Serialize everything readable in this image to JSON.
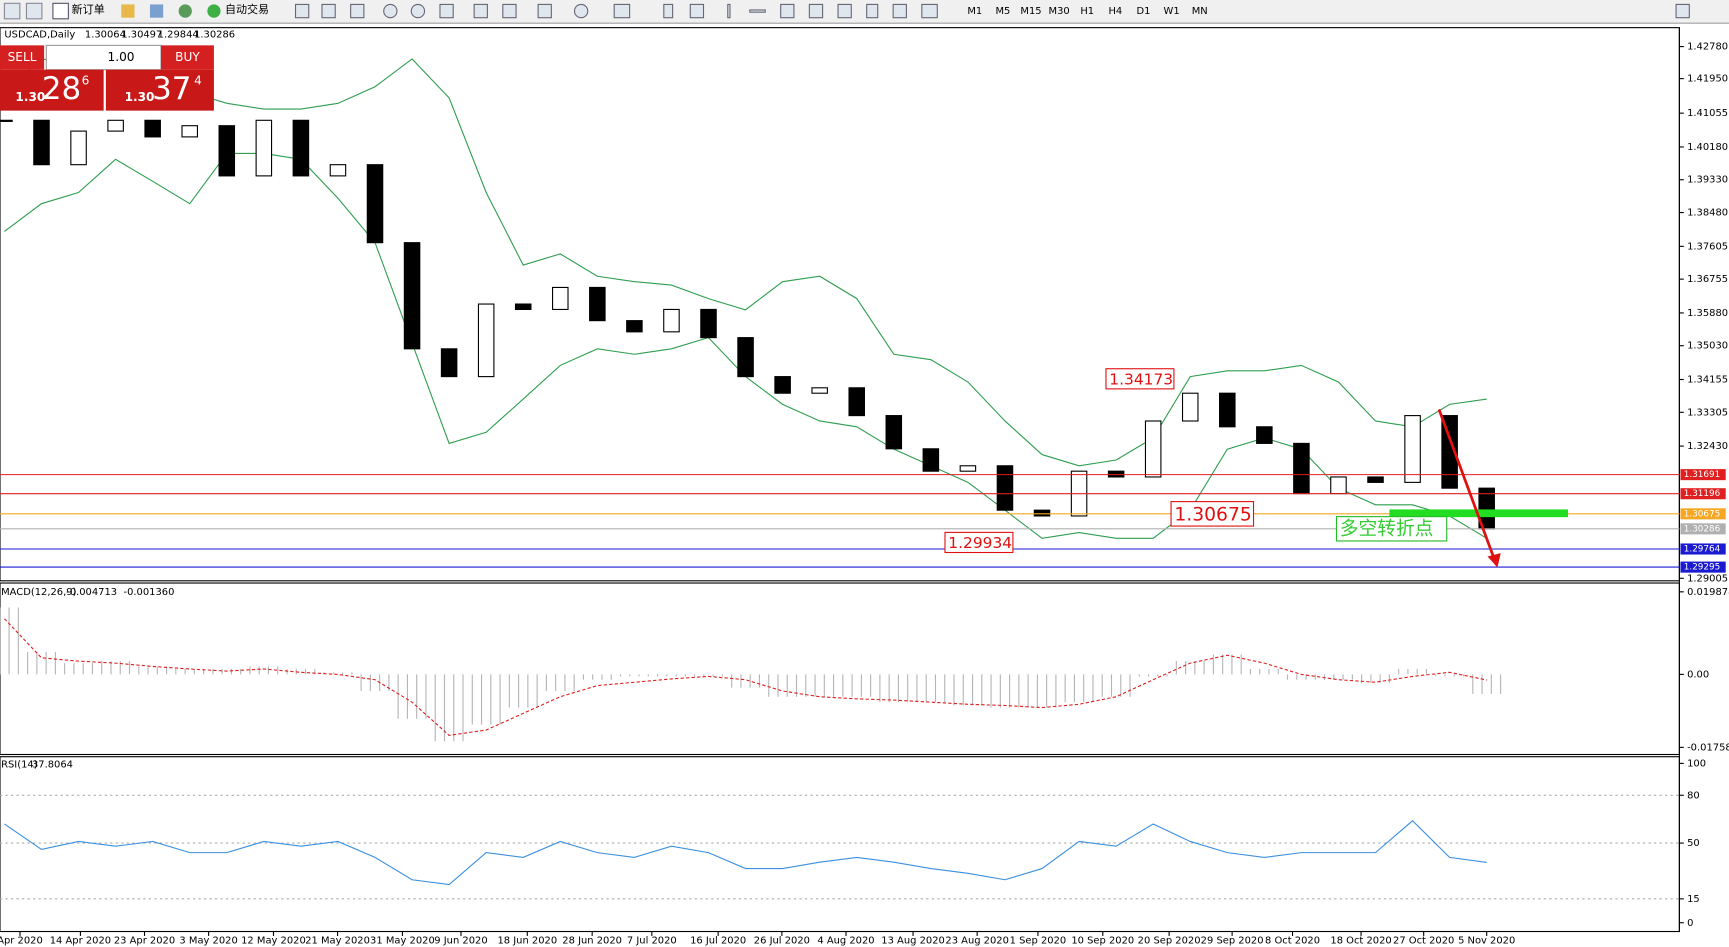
{
  "toolbar": {
    "new_order": "新订单",
    "auto_trading": "自动交易",
    "timeframes": [
      "M1",
      "M5",
      "M15",
      "M30",
      "H1",
      "H4",
      "D1",
      "W1",
      "MN"
    ]
  },
  "trade_panel": {
    "sell": "SELL",
    "lots": "1.00",
    "buy": "BUY",
    "sell_price": {
      "big": "1.30",
      "pips": "28",
      "point": "6"
    },
    "buy_price": {
      "big": "1.30",
      "pips": "37",
      "point": "4"
    }
  },
  "chart_data": [
    {
      "type": "candlestick",
      "title": "USDCAD,Daily",
      "ohlc": [
        1.30064,
        1.30497,
        1.29844,
        1.30286
      ],
      "close": [
        1.4087,
        1.3972,
        1.4059,
        1.4087,
        1.4044,
        1.4073,
        1.3943,
        1.4087,
        1.3943,
        1.3972,
        1.377,
        1.3495,
        1.3423,
        1.3611,
        1.3597,
        1.3654,
        1.3568,
        1.3539,
        1.3597,
        1.3524,
        1.3423,
        1.338,
        1.3394,
        1.3322,
        1.3236,
        1.3178,
        1.3192,
        1.3077,
        1.3062,
        1.3178,
        1.3163,
        1.3308,
        1.338,
        1.3293,
        1.325,
        1.312,
        1.3163,
        1.3149,
        1.3322,
        1.3134,
        1.30286
      ],
      "upper": [
        1.416,
        1.4246,
        1.4232,
        1.4238,
        1.4203,
        1.416,
        1.4131,
        1.4116,
        1.4116,
        1.4131,
        1.4174,
        1.4246,
        1.4145,
        1.39,
        1.3712,
        1.3741,
        1.3683,
        1.3669,
        1.366,
        1.3625,
        1.3596,
        1.3669,
        1.3683,
        1.3625,
        1.3481,
        1.3467,
        1.3409,
        1.3308,
        1.3221,
        1.3192,
        1.3207,
        1.3264,
        1.3423,
        1.3438,
        1.3438,
        1.3452,
        1.3409,
        1.3308,
        1.3293,
        1.3351,
        1.3365
      ],
      "lower": [
        1.3799,
        1.3871,
        1.39,
        1.3986,
        1.3929,
        1.3871,
        1.4001,
        1.4001,
        1.3986,
        1.3885,
        1.377,
        1.351,
        1.325,
        1.3279,
        1.3365,
        1.3452,
        1.3495,
        1.3481,
        1.3495,
        1.3524,
        1.3423,
        1.3351,
        1.3308,
        1.3293,
        1.3235,
        1.3192,
        1.3149,
        1.3077,
        1.3004,
        1.3019,
        1.3004,
        1.3004,
        1.3077,
        1.3235,
        1.3264,
        1.3235,
        1.3134,
        1.3091,
        1.3091,
        1.3062,
        1.3004
      ],
      "band_color": "#2e9e4e",
      "up_color": "#ffffff",
      "down_color": "#000000",
      "ylim": [
        1.2894,
        1.4327
      ],
      "xlim": [
        -0.12,
        45.2
      ],
      "yticks": [
        {
          "value": 1.4278,
          "label": "1.42780"
        },
        {
          "value": 1.4195,
          "label": "1.41950"
        },
        1.41055,
        {
          "value": 1.4018,
          "label": "1.40180"
        },
        {
          "value": 1.3933,
          "label": "1.39330"
        },
        {
          "value": 1.3848,
          "label": "1.38480"
        },
        1.37605,
        1.36755,
        {
          "value": 1.3588,
          "label": "1.35880"
        },
        {
          "value": 1.3503,
          "label": "1.35030"
        },
        1.34155,
        1.33305,
        {
          "value": 1.3243,
          "label": "1.32430"
        },
        1.29005
      ],
      "xticks": [
        {
          "value": 0.42,
          "label": "Apr 2020"
        },
        {
          "value": 2.05,
          "label": "14 Apr 2020"
        },
        {
          "value": 3.78,
          "label": "23 Apr 2020"
        },
        {
          "value": 5.51,
          "label": "3 May 2020"
        },
        {
          "value": 7.26,
          "label": "12 May 2020"
        },
        {
          "value": 8.99,
          "label": "21 May 2020"
        },
        {
          "value": 10.74,
          "label": "31 May 2020"
        },
        {
          "value": 12.32,
          "label": "9 Jun 2020"
        },
        {
          "value": 14.11,
          "label": "18 Jun 2020"
        },
        {
          "value": 15.86,
          "label": "28 Jun 2020"
        },
        {
          "value": 17.47,
          "label": "7 Jul 2020"
        },
        {
          "value": 19.26,
          "label": "16 Jul 2020"
        },
        {
          "value": 20.98,
          "label": "26 Jul 2020"
        },
        {
          "value": 22.71,
          "label": "4 Aug 2020"
        },
        {
          "value": 24.52,
          "label": "13 Aug 2020"
        },
        {
          "value": 26.25,
          "label": "23 Aug 2020"
        },
        {
          "value": 27.89,
          "label": "1 Sep 2020"
        },
        {
          "value": 29.64,
          "label": "10 Sep 2020"
        },
        {
          "value": 31.43,
          "label": "20 Sep 2020"
        },
        {
          "value": 33.13,
          "label": "29 Sep 2020"
        },
        {
          "value": 34.76,
          "label": "8 Oct 2020"
        },
        {
          "value": 36.61,
          "label": "18 Oct 2020"
        },
        {
          "value": 38.3,
          "label": "27 Oct 2020"
        },
        {
          "value": 40,
          "label": "5 Nov 2020"
        }
      ],
      "levels": [
        {
          "value": 1.31691,
          "color": "#e02020"
        },
        {
          "value": 1.31196,
          "color": "#e02020"
        },
        {
          "value": 1.30675,
          "color": "#f5a623"
        },
        {
          "value": 1.30286,
          "color": "#b0b0b0"
        },
        {
          "value": 1.29764,
          "color": "#1a1ad0"
        },
        {
          "value": 1.29295,
          "color": "#1a1ad0"
        }
      ],
      "annotations": [
        {
          "value": 1.34173
        },
        {
          "value": 1.30675
        },
        {
          "value": 1.29934
        }
      ],
      "note": "多空转折点"
    },
    {
      "type": "macd",
      "title": "MACD(12,26,9)",
      "readout": [
        -0.004713,
        {
          "value": -0.00136,
          "label": "-0.001360"
        }
      ],
      "macd": [
        0.0161,
        0.0054,
        0.0027,
        0.0032,
        0.0019,
        0.0013,
        0.0013,
        0.0019,
        0.0013,
        0.0005,
        -0.004,
        -0.0107,
        -0.0161,
        -0.0121,
        -0.008,
        -0.004,
        -0.0013,
        -0.0005,
        -0.0005,
        -0.0005,
        -0.0032,
        -0.0054,
        -0.0054,
        -0.0054,
        -0.0067,
        -0.0067,
        -0.0075,
        -0.008,
        -0.008,
        -0.0067,
        -0.0054,
        -0.0005,
        0.0032,
        0.0048,
        0.0013,
        -0.0013,
        -0.0013,
        -0.0021,
        0.0013,
        -0.0005,
        -0.004713
      ],
      "signal": [
        0.0134,
        0.004,
        0.0032,
        0.0027,
        0.0019,
        0.0013,
        0.0008,
        0.0013,
        0.0005,
        0,
        -0.0013,
        -0.0067,
        -0.0147,
        -0.0134,
        -0.0094,
        -0.0054,
        -0.0027,
        -0.0019,
        -0.0011,
        -0.0005,
        -0.0013,
        -0.004,
        -0.0054,
        -0.0059,
        -0.0062,
        -0.0067,
        -0.0072,
        -0.0075,
        -0.008,
        -0.0072,
        -0.0054,
        -0.0013,
        0.0027,
        0.0046,
        0.0027,
        0,
        -0.0013,
        -0.0019,
        -0.0005,
        0.0005,
        -0.00136
      ],
      "macd_color": "#b4b4b4",
      "signal_color": "#e02020",
      "ylim": [
        -0.0193,
        0.022
      ],
      "yticks": [
        0.019878,
        {
          "value": 0,
          "label": "0.00"
        },
        -0.017582
      ]
    },
    {
      "type": "line",
      "title": "RSI(14)",
      "readout": 37.8064,
      "values": [
        62,
        46,
        51,
        48,
        51,
        44,
        44,
        51,
        48,
        51,
        41,
        27,
        24,
        44,
        41,
        51,
        44,
        41,
        48,
        44,
        34,
        34,
        38,
        41,
        38,
        34,
        31,
        27,
        34,
        51,
        48,
        62,
        51,
        44,
        41,
        44,
        44,
        44,
        64,
        41,
        37.8064
      ],
      "color": "#3a8fdf",
      "ylim": [
        -5.5,
        104.2
      ],
      "yticks": [
        100,
        80,
        50,
        15,
        0
      ],
      "levels": [
        80,
        50,
        15
      ]
    }
  ]
}
